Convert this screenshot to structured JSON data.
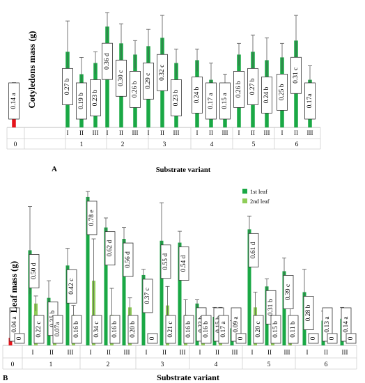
{
  "chart_data": [
    {
      "type": "bar",
      "panel": "A",
      "ylabel": "Cotyledons  mass (g)",
      "xlabel": "Substrate variant",
      "ylim": [
        0,
        0.43
      ],
      "groups": [
        {
          "label": "0",
          "subs": [
            ""
          ]
        },
        {
          "label": "1",
          "subs": [
            "I",
            "II",
            "III"
          ]
        },
        {
          "label": "2",
          "subs": [
            "I",
            "II",
            "III"
          ]
        },
        {
          "label": "3",
          "subs": [
            "I",
            "II",
            "III"
          ]
        },
        {
          "label": "4",
          "subs": [
            "I",
            "II",
            "III"
          ]
        },
        {
          "label": "5",
          "subs": [
            "I",
            "II",
            "III"
          ]
        },
        {
          "label": "6",
          "subs": [
            "I",
            "II",
            "III"
          ]
        }
      ],
      "colors": {
        "control": "#e5141b",
        "series": "#1aa845"
      },
      "values": [
        0.14,
        0.27,
        0.19,
        0.23,
        0.36,
        0.3,
        0.26,
        0.29,
        0.32,
        0.23,
        0.24,
        0.17,
        0.15,
        0.26,
        0.27,
        0.24,
        0.25,
        0.31,
        0.17
      ],
      "errors": [
        0.02,
        0.11,
        0.06,
        0.04,
        0.05,
        0.07,
        0.05,
        0.06,
        0.08,
        0.05,
        0.04,
        0.06,
        0.04,
        0.04,
        0.06,
        0.08,
        0.05,
        0.09,
        0.05
      ],
      "labels": [
        "0.14 a",
        "0.27 b",
        "0.19 b",
        "0.23 b",
        "0.36 d",
        "0.30 c",
        "0.26 b",
        "0.29 c",
        "0.32 c",
        "0.23 b",
        "0.24 b",
        "0.17 a",
        "0.15 a",
        "0.26 b",
        "0.27 b",
        "0.24 b",
        "0.25 b",
        "0.31 c",
        "0.17a"
      ]
    },
    {
      "type": "bar",
      "panel": "B",
      "ylabel": "Leaf mass (g)",
      "xlabel": "Substrate variant",
      "ylim": [
        0,
        0.82
      ],
      "legend": "top-right",
      "colors": {
        "control": "#e5141b",
        "series1": "#1aa845",
        "series2": "#8fcd58"
      },
      "groups": [
        {
          "label": "0",
          "subs": [
            ""
          ]
        },
        {
          "label": "1",
          "subs": [
            "I",
            "II",
            "III"
          ]
        },
        {
          "label": "2",
          "subs": [
            "I",
            "II",
            "III"
          ]
        },
        {
          "label": "3",
          "subs": [
            "I",
            "II",
            "III"
          ]
        },
        {
          "label": "4",
          "subs": [
            "I",
            "II",
            "III"
          ]
        },
        {
          "label": "5",
          "subs": [
            "I",
            "II",
            "III"
          ]
        },
        {
          "label": "6",
          "subs": [
            "I",
            "II",
            "III"
          ]
        }
      ],
      "series": [
        {
          "name": "1st leaf",
          "values": [
            0.04,
            0.5,
            0.25,
            0.42,
            0.78,
            0.62,
            0.56,
            0.37,
            0.55,
            0.54,
            0.22,
            0.15,
            0.09,
            0.61,
            0.31,
            0.39,
            0.28,
            0.13,
            0.14
          ],
          "errors": [
            0.0,
            0.23,
            0.09,
            0.09,
            0.03,
            0.05,
            0.06,
            0.03,
            0.2,
            0.06,
            0.02,
            0.05,
            0.04,
            0.07,
            0.04,
            0.07,
            0.12,
            0.05,
            0.06
          ],
          "labels": [
            "0.04 a",
            "0.50 d",
            "0.25 b",
            "0.42 c",
            "0.78 e",
            "0.62 d",
            "0.56 d",
            "0.37 c",
            "0.55 d",
            "0.54 d",
            "0.22 b",
            "0.15 b",
            "0.09 a",
            "0.61 d",
            "0.31 b",
            "0.39 c",
            "0.28 b",
            "0.13 a",
            "0.14 a"
          ]
        },
        {
          "name": "2nd leaf",
          "values": [
            0,
            0.22,
            0.07,
            0.16,
            0.34,
            0.16,
            0.2,
            0,
            0.21,
            0.16,
            0.16,
            0.17,
            0,
            0.2,
            0.15,
            0.11,
            0,
            0,
            0
          ],
          "errors": [
            0,
            0.04,
            0.03,
            0.05,
            0.22,
            0.14,
            0.05,
            0,
            0.1,
            0.08,
            0.02,
            0.03,
            0,
            0.08,
            0.05,
            0.11,
            0,
            0,
            0
          ],
          "labels": [
            "0",
            "0.22 c",
            "0.07a",
            "0.16 b",
            "0.34 c",
            "0.16 b",
            "0.20 b",
            "0",
            "0.21 c",
            "0.16 b",
            "0.16 b",
            "0.17 a",
            "0",
            "0.20 c",
            "0.15 b",
            "0.11 b",
            "0",
            "0",
            "0"
          ]
        }
      ]
    }
  ]
}
